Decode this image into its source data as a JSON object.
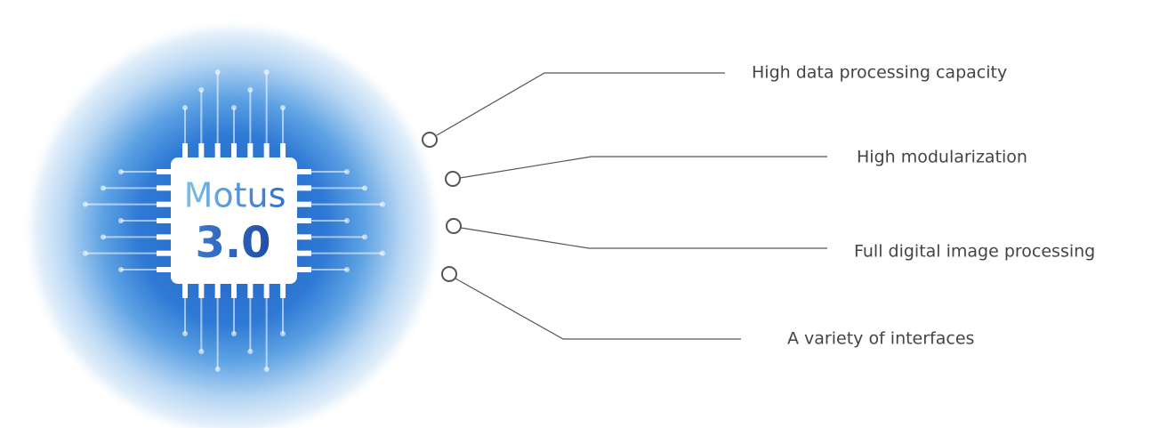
{
  "chip": {
    "name": "Motus",
    "version": "3.0"
  },
  "features": [
    "High data processing capacity",
    "High modularization",
    "Full digital image processing",
    "A variety of interfaces"
  ]
}
